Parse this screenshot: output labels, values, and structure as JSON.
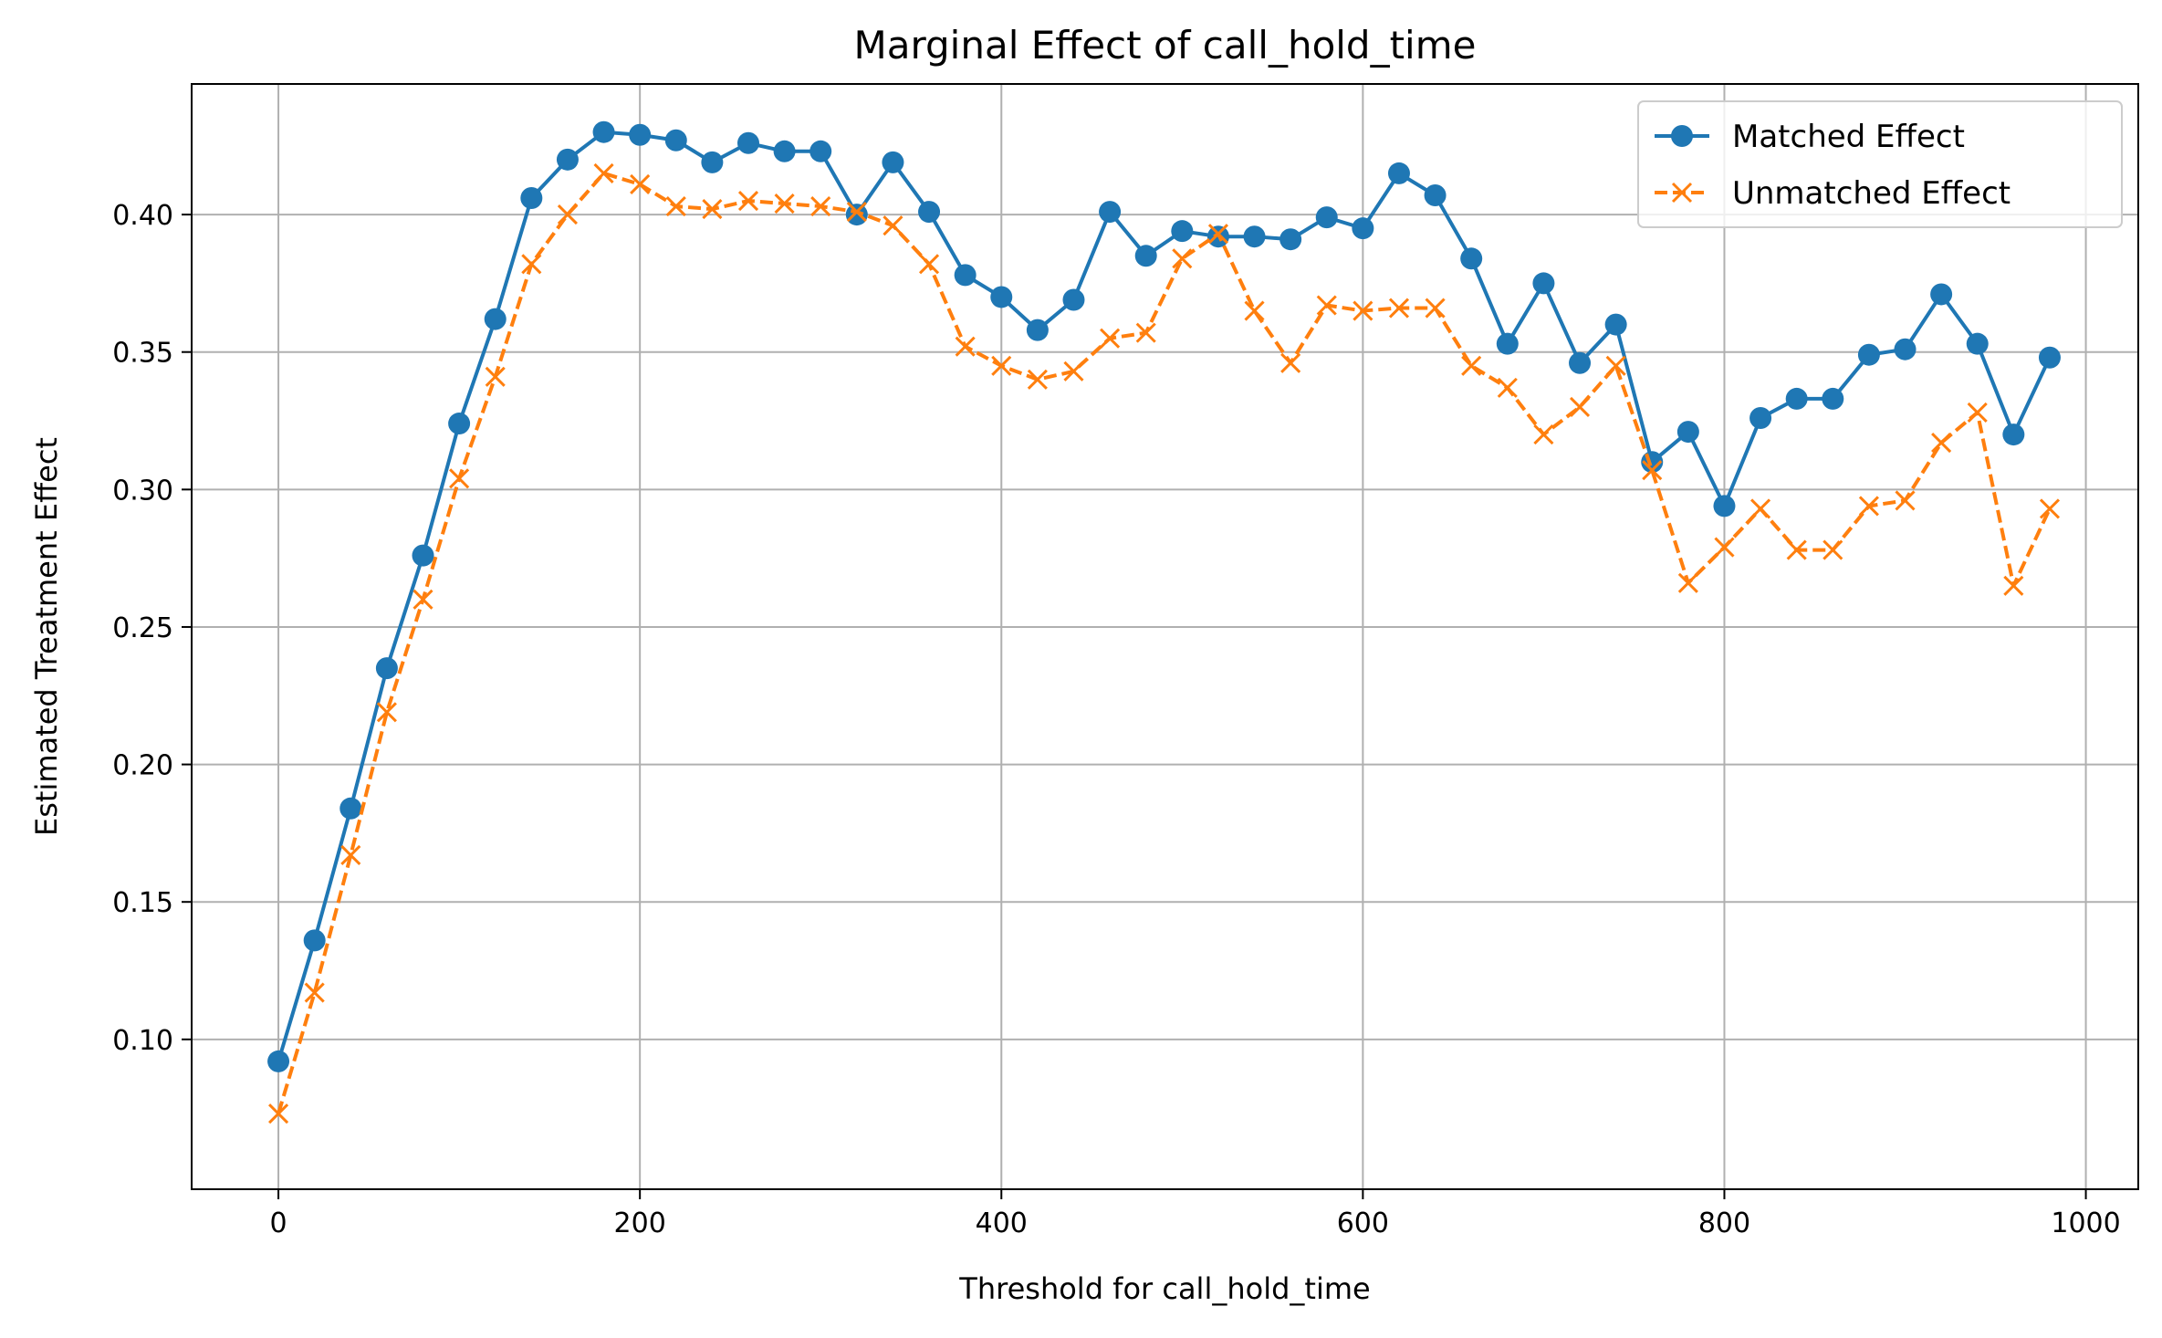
{
  "chart_data": {
    "type": "line",
    "title": "Marginal Effect of call_hold_time",
    "xlabel": "Threshold for call_hold_time",
    "ylabel": "Estimated Treatment Effect",
    "xlim": [
      -48,
      1029
    ],
    "ylim": [
      0.0455,
      0.4475
    ],
    "x_ticks": [
      0,
      200,
      400,
      600,
      800,
      1000
    ],
    "y_ticks": [
      0.1,
      0.15,
      0.2,
      0.25,
      0.3,
      0.35,
      0.4
    ],
    "grid": true,
    "legend_position": "top-right",
    "x": [
      0,
      20,
      40,
      60,
      80,
      100,
      120,
      140,
      160,
      180,
      200,
      220,
      240,
      260,
      280,
      300,
      320,
      340,
      360,
      380,
      400,
      420,
      440,
      460,
      480,
      500,
      520,
      540,
      560,
      580,
      600,
      620,
      640,
      660,
      680,
      700,
      720,
      740,
      760,
      780,
      800,
      820,
      840,
      860,
      880,
      900,
      920,
      940,
      960,
      980
    ],
    "series": [
      {
        "name": "Matched Effect",
        "color": "#1f77b4",
        "line_style": "solid",
        "marker": "circle",
        "values": [
          0.092,
          0.136,
          0.184,
          0.235,
          0.276,
          0.324,
          0.362,
          0.406,
          0.42,
          0.43,
          0.429,
          0.427,
          0.419,
          0.426,
          0.423,
          0.423,
          0.4,
          0.419,
          0.401,
          0.378,
          0.37,
          0.358,
          0.369,
          0.401,
          0.385,
          0.394,
          0.392,
          0.392,
          0.391,
          0.399,
          0.395,
          0.415,
          0.407,
          0.384,
          0.353,
          0.375,
          0.346,
          0.36,
          0.31,
          0.321,
          0.294,
          0.326,
          0.333,
          0.333,
          0.349,
          0.351,
          0.371,
          0.353,
          0.32,
          0.348
        ]
      },
      {
        "name": "Unmatched Effect",
        "color": "#ff7f0e",
        "line_style": "dashed",
        "marker": "x",
        "values": [
          0.073,
          0.117,
          0.167,
          0.219,
          0.26,
          0.304,
          0.341,
          0.382,
          0.4,
          0.415,
          0.411,
          0.403,
          0.402,
          0.405,
          0.404,
          0.403,
          0.401,
          0.396,
          0.382,
          0.352,
          0.345,
          0.34,
          0.343,
          0.355,
          0.357,
          0.384,
          0.393,
          0.365,
          0.346,
          0.367,
          0.365,
          0.366,
          0.366,
          0.345,
          0.337,
          0.32,
          0.33,
          0.345,
          0.307,
          0.266,
          0.279,
          0.293,
          0.278,
          0.278,
          0.294,
          0.296,
          0.317,
          0.328,
          0.265,
          0.293
        ]
      }
    ]
  }
}
